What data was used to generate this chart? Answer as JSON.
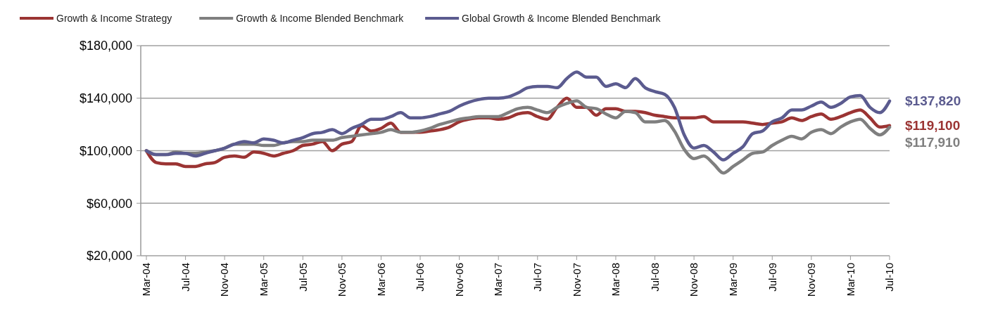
{
  "chart_data": {
    "type": "line",
    "categories": [
      "Mar-04",
      null,
      null,
      null,
      "Jul-04",
      null,
      null,
      null,
      "Nov-04",
      null,
      null,
      null,
      "Mar-05",
      null,
      null,
      null,
      "Jul-05",
      null,
      null,
      null,
      "Nov-05",
      null,
      null,
      null,
      "Mar-06",
      null,
      null,
      null,
      "Jul-06",
      null,
      null,
      null,
      "Nov-06",
      null,
      null,
      null,
      "Mar-07",
      null,
      null,
      null,
      "Jul-07",
      null,
      null,
      null,
      "Nov-07",
      null,
      null,
      null,
      "Mar-08",
      null,
      null,
      null,
      "Jul-08",
      null,
      null,
      null,
      "Nov-08",
      null,
      null,
      null,
      "Mar-09",
      null,
      null,
      null,
      "Jul-09",
      null,
      null,
      null,
      "Nov-09",
      null,
      null,
      null,
      "Mar-10",
      null,
      null,
      null,
      "Jul-10"
    ],
    "series": [
      {
        "name": "Growth & Income Strategy",
        "color": "#9b3433",
        "values": [
          100000,
          91000,
          90000,
          90000,
          88000,
          88000,
          90000,
          91000,
          95000,
          96000,
          95000,
          99000,
          98000,
          96000,
          98000,
          100000,
          104000,
          105000,
          107000,
          100000,
          105000,
          107000,
          119000,
          115000,
          117000,
          121000,
          114000,
          114000,
          114000,
          115000,
          116000,
          118000,
          122000,
          124000,
          125000,
          125000,
          124000,
          125000,
          128000,
          129000,
          126000,
          124000,
          133000,
          140000,
          133000,
          133000,
          127000,
          132000,
          132000,
          130000,
          130000,
          129000,
          127000,
          126000,
          125000,
          125000,
          125000,
          126000,
          122000,
          122000,
          122000,
          122000,
          121000,
          120000,
          121000,
          122000,
          125000,
          123000,
          126000,
          128000,
          124000,
          126000,
          129000,
          131000,
          125000,
          118000,
          119100
        ],
        "value_labels": [
          null,
          null,
          null,
          null,
          null,
          null,
          null,
          null,
          null,
          null,
          null,
          null,
          null,
          null,
          null,
          null,
          null,
          null,
          null,
          null,
          null,
          null,
          null,
          null,
          null,
          null,
          null,
          null,
          null,
          null,
          null,
          null,
          null,
          null,
          null,
          null,
          null,
          null,
          null,
          null,
          null,
          null,
          null,
          null,
          null,
          null,
          null,
          null,
          null,
          null,
          null,
          null,
          null,
          null,
          null,
          null,
          null,
          null,
          null,
          null,
          null,
          null,
          null,
          null,
          null,
          null,
          null,
          null,
          null,
          null,
          null,
          null,
          null,
          null,
          null,
          null,
          "$119,100"
        ]
      },
      {
        "name": "Growth & Income Blended Benchmark",
        "color": "#7f7f7f",
        "values": [
          100000,
          97000,
          97000,
          99000,
          98000,
          98000,
          99000,
          100000,
          102000,
          105000,
          105000,
          105000,
          104000,
          104000,
          106000,
          107000,
          107000,
          108000,
          108000,
          108000,
          110000,
          111000,
          112000,
          113000,
          114000,
          116000,
          114000,
          114000,
          115000,
          117000,
          120000,
          122000,
          124000,
          125000,
          126000,
          126000,
          126000,
          129000,
          132000,
          133000,
          131000,
          129000,
          133000,
          136000,
          138000,
          133000,
          132000,
          128000,
          125000,
          130000,
          129000,
          122000,
          122000,
          123000,
          115000,
          101000,
          94000,
          96000,
          90000,
          83000,
          88000,
          93000,
          98000,
          99000,
          104000,
          108000,
          111000,
          109000,
          114000,
          116000,
          113000,
          118000,
          122000,
          124000,
          117000,
          112000,
          117910
        ],
        "value_labels": [
          null,
          null,
          null,
          null,
          null,
          null,
          null,
          null,
          null,
          null,
          null,
          null,
          null,
          null,
          null,
          null,
          null,
          null,
          null,
          null,
          null,
          null,
          null,
          null,
          null,
          null,
          null,
          null,
          null,
          null,
          null,
          null,
          null,
          null,
          null,
          null,
          null,
          null,
          null,
          null,
          null,
          null,
          null,
          null,
          null,
          null,
          null,
          null,
          null,
          null,
          null,
          null,
          null,
          null,
          null,
          null,
          null,
          null,
          null,
          null,
          null,
          null,
          null,
          null,
          null,
          null,
          null,
          null,
          null,
          null,
          null,
          null,
          null,
          null,
          null,
          null,
          "$117,910"
        ]
      },
      {
        "name": "Global Growth & Income Blended Benchmark",
        "color": "#5b5b8f",
        "values": [
          100000,
          97000,
          97000,
          98000,
          98000,
          96000,
          98000,
          100000,
          102000,
          105000,
          107000,
          106000,
          109000,
          108000,
          106000,
          108000,
          110000,
          113000,
          114000,
          116000,
          113000,
          117000,
          120000,
          124000,
          124000,
          126000,
          129000,
          125000,
          125000,
          126000,
          128000,
          130000,
          134000,
          137000,
          139000,
          140000,
          140000,
          141000,
          144000,
          148000,
          149000,
          149000,
          148000,
          155000,
          160000,
          156000,
          156000,
          149000,
          151000,
          148000,
          155000,
          148000,
          145000,
          143000,
          133000,
          112000,
          102000,
          104000,
          99000,
          93000,
          98000,
          103000,
          113000,
          115000,
          122000,
          125000,
          131000,
          131000,
          134000,
          137000,
          133000,
          136000,
          141000,
          142000,
          133000,
          129000,
          137820
        ],
        "value_labels": [
          null,
          null,
          null,
          null,
          null,
          null,
          null,
          null,
          null,
          null,
          null,
          null,
          null,
          null,
          null,
          null,
          null,
          null,
          null,
          null,
          null,
          null,
          null,
          null,
          null,
          null,
          null,
          null,
          null,
          null,
          null,
          null,
          null,
          null,
          null,
          null,
          null,
          null,
          null,
          null,
          null,
          null,
          null,
          null,
          null,
          null,
          null,
          null,
          null,
          null,
          null,
          null,
          null,
          null,
          null,
          null,
          null,
          null,
          null,
          null,
          null,
          null,
          null,
          null,
          null,
          null,
          null,
          null,
          null,
          null,
          null,
          null,
          null,
          null,
          null,
          null,
          "$137,820"
        ]
      }
    ],
    "ylim": [
      20000,
      180000
    ],
    "yticks": [
      {
        "value": 20000,
        "label": "$20,000"
      },
      {
        "value": 60000,
        "label": "$60,000"
      },
      {
        "value": 100000,
        "label": "$100,000"
      },
      {
        "value": 140000,
        "label": "$140,000"
      },
      {
        "value": 180000,
        "label": "$180,000"
      }
    ],
    "grid": "y",
    "legend": "top",
    "marker": "none",
    "line_style": "solid"
  }
}
